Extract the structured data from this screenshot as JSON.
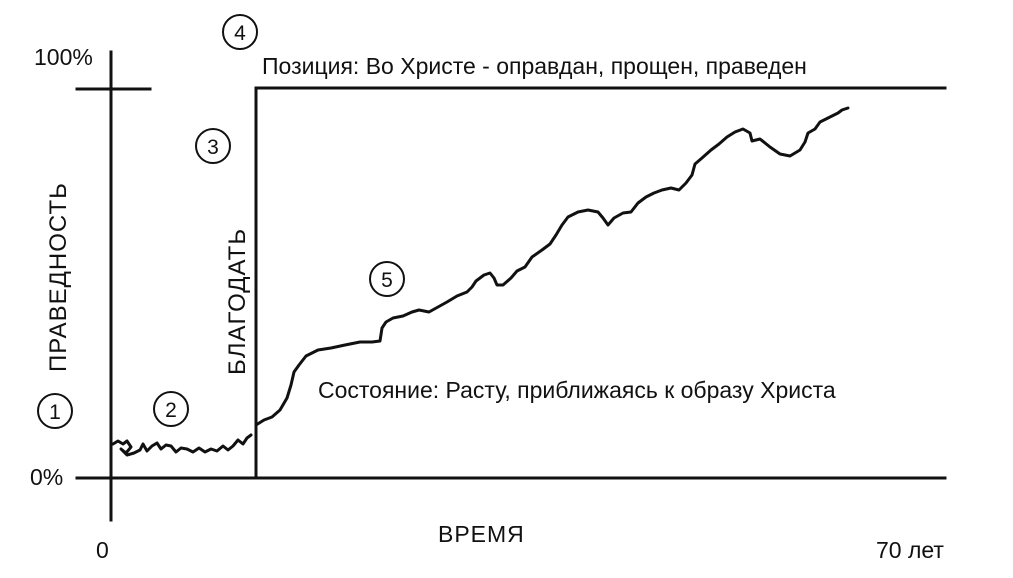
{
  "diagram": {
    "y_top_label": "100%",
    "y_bottom_label": "0%",
    "y_axis_label": "ПРАВЕДНОСТЬ",
    "x_start_label": "0",
    "x_end_label": "70 лет",
    "x_axis_label": "ВРЕМЯ",
    "grace_label": "БЛАГОДАТЬ",
    "position_label": "Позиция: Во Христе - оправдан, прощен, праведен",
    "state_label": "Состояние: Расту, приближаясь к образу Христа",
    "markers": [
      "1",
      "2",
      "3",
      "4",
      "5"
    ]
  }
}
